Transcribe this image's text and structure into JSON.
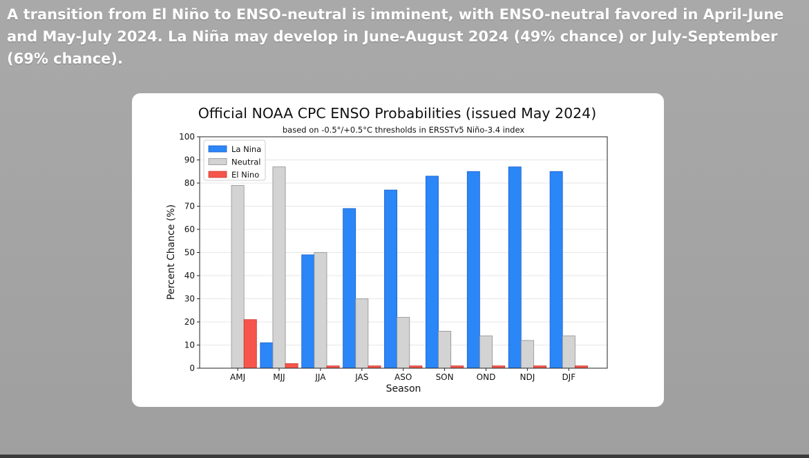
{
  "headline": "A transition from El Niño to ENSO-neutral is imminent, with ENSO-neutral favored in April-June and May-July 2024.  La Niña may develop in June-August 2024 (49% chance) or July-September (69% chance).",
  "colors": {
    "la_nina": "#2b86f7",
    "neutral": "#d3d3d3",
    "el_nino": "#f5554a"
  },
  "chart_data": {
    "type": "bar",
    "title": "Official NOAA CPC ENSO Probabilities (issued May 2024)",
    "subtitle": "based on -0.5°/+0.5°C thresholds in ERSSTv5 Niño-3.4 index",
    "xlabel": "Season",
    "ylabel": "Percent Chance (%)",
    "ylim": [
      0,
      100
    ],
    "yticks": [
      0,
      10,
      20,
      30,
      40,
      50,
      60,
      70,
      80,
      90,
      100
    ],
    "grid": true,
    "legend_position": "top-left",
    "categories": [
      "AMJ",
      "MJJ",
      "JJA",
      "JAS",
      "ASO",
      "SON",
      "OND",
      "NDJ",
      "DJF"
    ],
    "series": [
      {
        "name": "La Nina",
        "values": [
          0,
          11,
          49,
          69,
          77,
          83,
          85,
          87,
          85
        ]
      },
      {
        "name": "Neutral",
        "values": [
          79,
          87,
          50,
          30,
          22,
          16,
          14,
          12,
          14
        ]
      },
      {
        "name": "El Nino",
        "values": [
          21,
          2,
          1,
          1,
          1,
          1,
          1,
          1,
          1
        ]
      }
    ]
  }
}
